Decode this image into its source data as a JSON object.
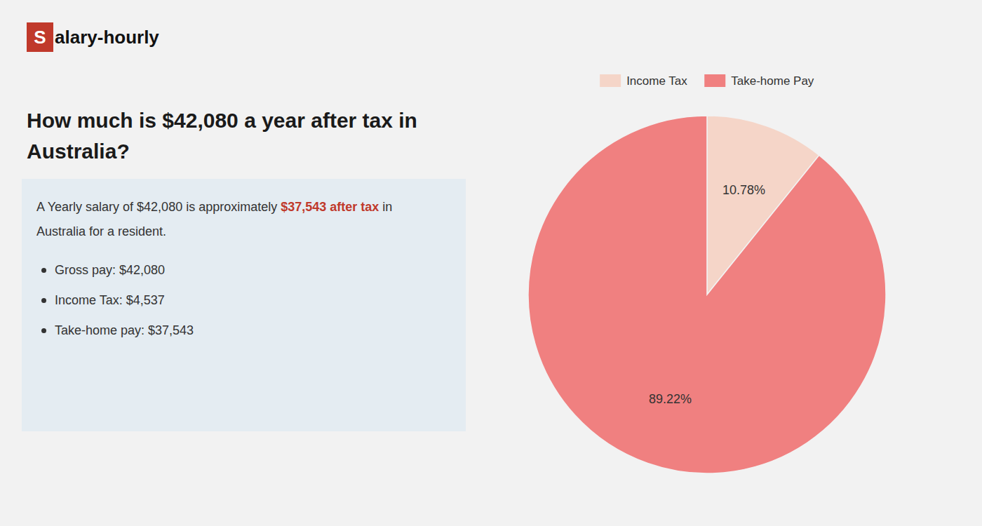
{
  "chart_data": {
    "type": "pie",
    "title": "How much is $42,080 a year after tax in Australia?",
    "annotations": [
      "S",
      "alary-hourly",
      "A Yearly salary of $42,080 is approximately ",
      "$37,543 after tax",
      " in",
      "Australia for a resident.",
      "Gross pay: $42,080",
      "Income Tax: $4,537",
      "Take-home pay: $37,543"
    ],
    "categories": [
      "Income Tax",
      "Take-home Pay"
    ],
    "values": [
      10.78,
      89.22
    ],
    "value_labels": [
      "10.78%",
      "89.22%"
    ],
    "colors": [
      "#f5d5c8",
      "#f08080"
    ],
    "data_labels": true,
    "legend": "top"
  }
}
